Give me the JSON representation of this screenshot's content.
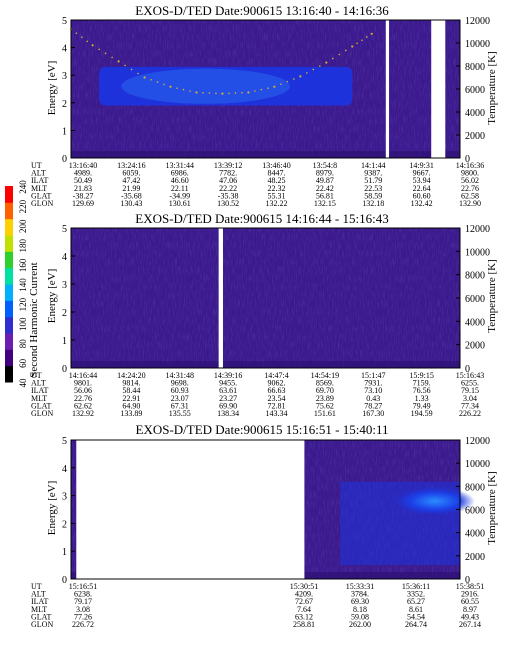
{
  "palette": {
    "bg": "#3c1a8e",
    "bg_dark": "#2a0f6e",
    "blue": "#1c34e0",
    "blue_light": "#2a6cf0",
    "dot": "#d8b030",
    "gap": "#ffffff"
  },
  "colorbar": {
    "label": "Second Harmonic Current",
    "ticks": [
      "40",
      "60",
      "80",
      "100",
      "120",
      "140",
      "160",
      "180",
      "200",
      "220",
      "240"
    ],
    "stops": [
      "#000000",
      "#40007f",
      "#6a1fb0",
      "#2f2fd0",
      "#0060ff",
      "#00b0ff",
      "#00e0a0",
      "#30d030",
      "#c0e000",
      "#ffd000",
      "#ff6000",
      "#ff0000"
    ]
  },
  "row_labels": [
    "UT",
    "ALT",
    "ILAT",
    "MLT",
    "GLAT",
    "GLON"
  ],
  "chart_data": [
    {
      "type": "heatmap",
      "title": "EXOS-D/TED   Date:900615   13:16:40 - 14:16:36",
      "ylabel": "Energy [eV]",
      "y2label": "Temperature [K]",
      "ylim": [
        0,
        5
      ],
      "y2lim": [
        0,
        12000
      ],
      "yticks": [
        "0",
        "1",
        "2",
        "3",
        "4",
        "5"
      ],
      "y2ticks": [
        "0",
        "2000",
        "4000",
        "6000",
        "8000",
        "10000",
        "12000"
      ],
      "x_range": [
        "13:16:40",
        "14:16:36"
      ],
      "data_gaps": [
        [
          "14:05:10",
          "14:05:40"
        ],
        [
          "14:12:10",
          "14:14:20"
        ]
      ],
      "high_band": {
        "x": [
          "13:21:00",
          "14:00:00"
        ],
        "energy": [
          1.9,
          3.3
        ]
      },
      "temperature_curve": {
        "ut": [
          "13:16:40",
          "13:20:00",
          "13:24:00",
          "13:28:00",
          "13:32:00",
          "13:36:00",
          "13:40:00",
          "13:44:00",
          "13:48:00",
          "13:52:00",
          "13:56:00",
          "14:00:00",
          "14:03:00"
        ],
        "temperature_k": [
          11200,
          9800,
          8400,
          7000,
          6200,
          5700,
          5600,
          5700,
          6200,
          7100,
          8300,
          9700,
          10800
        ]
      },
      "table": {
        "UT": [
          "13:16:40",
          "13:24:16",
          "13:31:44",
          "13:39:12",
          "13:46:40",
          "13:54:8",
          "14:1:44",
          "14:9:31",
          "14:16:36"
        ],
        "ALT": [
          "4989.",
          "6059.",
          "6986.",
          "7782.",
          "8447.",
          "8979.",
          "9387.",
          "9667.",
          "9800."
        ],
        "ILAT": [
          "50.49",
          "47.42",
          "46.60",
          "47.06",
          "48.25",
          "49.87",
          "51.79",
          "53.94",
          "56.02"
        ],
        "MLT": [
          "21.83",
          "21.99",
          "22.11",
          "22.22",
          "22.32",
          "22.42",
          "22.53",
          "22.64",
          "22.76"
        ],
        "GLAT": [
          "-38.27",
          "-35.68",
          "-34.99",
          "-35.38",
          "55.31",
          "56.81",
          "58.59",
          "60.60",
          "62.58"
        ],
        "GLON": [
          "129.69",
          "130.43",
          "130.61",
          "130.52",
          "132.22",
          "132.15",
          "132.18",
          "132.42",
          "132.90"
        ]
      }
    },
    {
      "type": "heatmap",
      "title": "EXOS-D/TED   Date:900615   14:16:44 - 15:16:43",
      "ylabel": "Energy [eV]",
      "y2label": "Temperature [K]",
      "ylim": [
        0,
        5
      ],
      "y2lim": [
        0,
        12000
      ],
      "yticks": [
        "0",
        "1",
        "2",
        "3",
        "4",
        "5"
      ],
      "y2ticks": [
        "0",
        "2000",
        "4000",
        "6000",
        "8000",
        "10000",
        "12000"
      ],
      "x_range": [
        "14:16:44",
        "15:16:43"
      ],
      "data_gaps": [
        [
          "14:39:30",
          "14:40:10"
        ]
      ],
      "table": {
        "UT": [
          "14:16:44",
          "14:24:20",
          "14:31:48",
          "14:39:16",
          "14:47:4",
          "14:54:19",
          "15:1:47",
          "15:9:15",
          "15:16:43"
        ],
        "ALT": [
          "9801.",
          "9814.",
          "9698.",
          "9455.",
          "9062.",
          "8569.",
          "7931.",
          "7159.",
          "6255."
        ],
        "ILAT": [
          "56.06",
          "58.44",
          "60.93",
          "63.61",
          "66.63",
          "69.70",
          "73.10",
          "76.56",
          "79.15"
        ],
        "MLT": [
          "22.76",
          "22.91",
          "23.07",
          "23.27",
          "23.54",
          "23.89",
          "0.43",
          "1.33",
          "3.04"
        ],
        "GLAT": [
          "62.62",
          "64.90",
          "67.31",
          "69.90",
          "72.81",
          "75.62",
          "78.27",
          "79.49",
          "77.34"
        ],
        "GLON": [
          "132.92",
          "133.89",
          "135.55",
          "138.34",
          "143.34",
          "151.61",
          "167.30",
          "194.59",
          "226.22"
        ]
      }
    },
    {
      "type": "heatmap",
      "title": "EXOS-D/TED   Date:900615   15:16:51 - 15:40:11",
      "ylabel": "Energy [eV]",
      "y2label": "Temperature [K]",
      "ylim": [
        0,
        5
      ],
      "y2lim": [
        0,
        12000
      ],
      "yticks": [
        "0",
        "1",
        "2",
        "3",
        "4",
        "5"
      ],
      "y2ticks": [
        "0",
        "2000",
        "4000",
        "6000",
        "8000",
        "10000",
        "12000"
      ],
      "x_range": [
        "15:16:51",
        "15:40:11"
      ],
      "data_gaps": [
        [
          "15:17:10",
          "15:30:51"
        ]
      ],
      "table": {
        "UT": [
          "15:16:51",
          "15:30:51",
          "15:33:31",
          "15:36:11",
          "15:38:51"
        ],
        "ALT": [
          "6238.",
          "4209.",
          "3784.",
          "3352.",
          "2916."
        ],
        "ILAT": [
          "79.17",
          "72.67",
          "69.30",
          "65.27",
          "60.55"
        ],
        "MLT": [
          "3.08",
          "7.64",
          "8.18",
          "8.61",
          "8.97"
        ],
        "GLAT": [
          "77.26",
          "63.12",
          "59.08",
          "54.54",
          "49.43"
        ],
        "GLON": [
          "226.72",
          "258.81",
          "262.00",
          "264.74",
          "267.14"
        ]
      }
    }
  ]
}
